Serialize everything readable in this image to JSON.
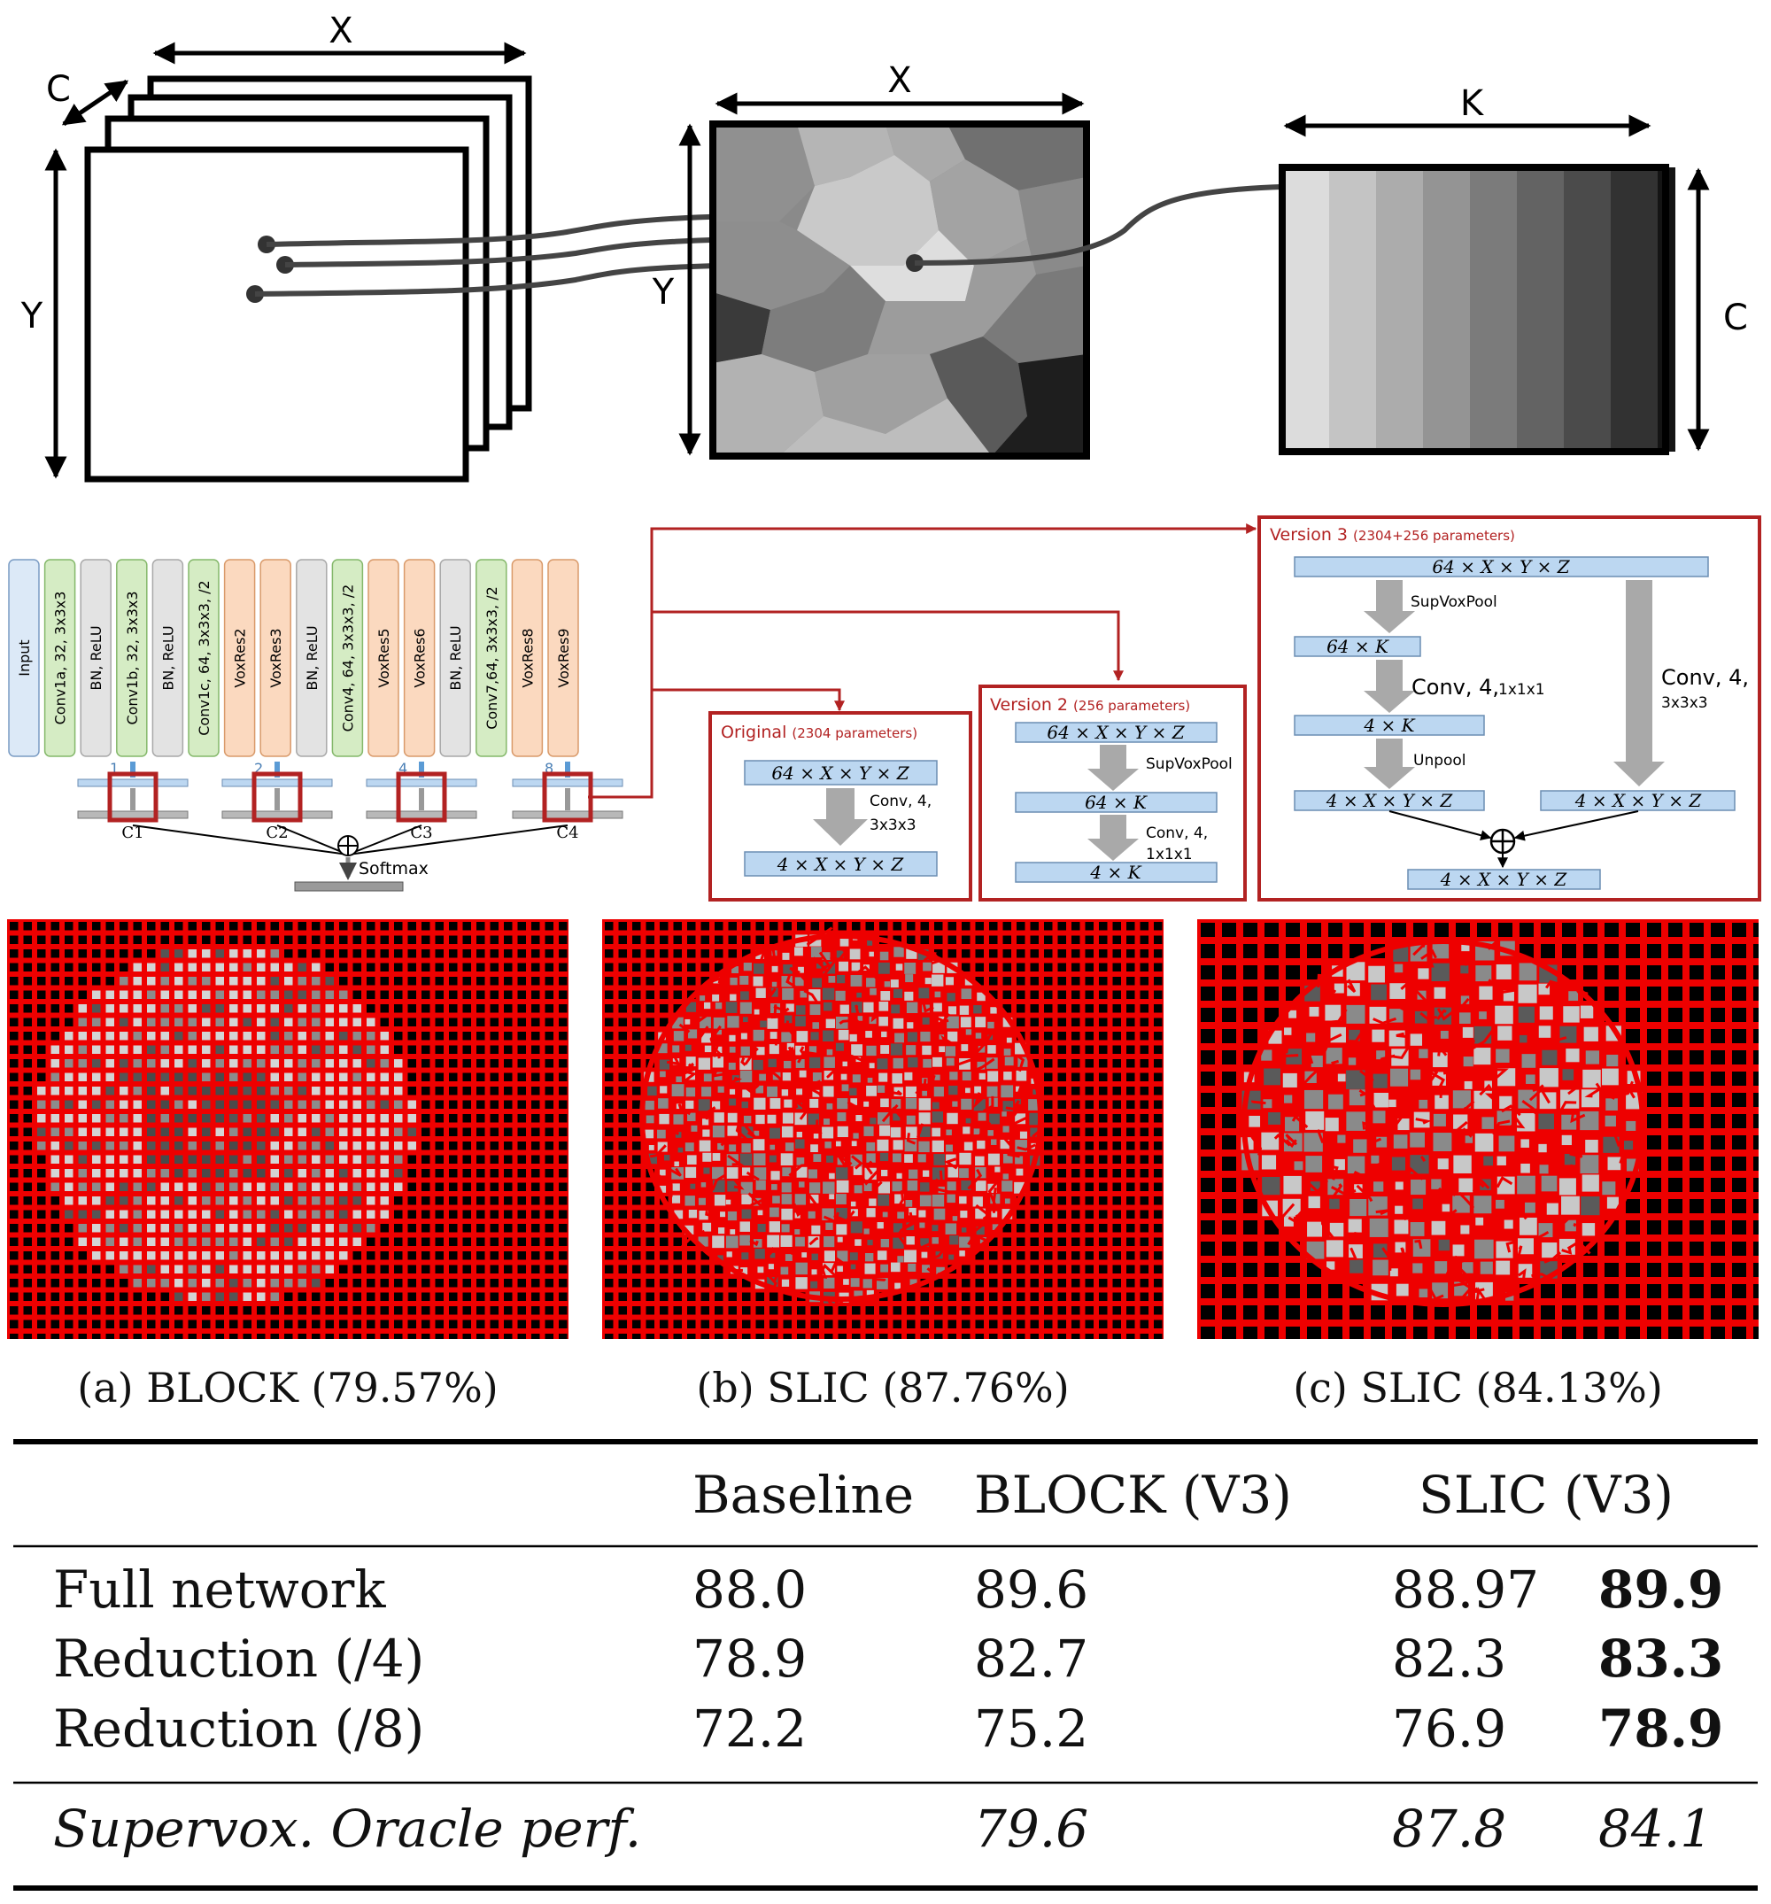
{
  "top_diagram": {
    "feature_maps": {
      "x_label": "X",
      "y_label": "Y",
      "c_label": "C"
    },
    "supervoxel_map": {
      "x_label": "X",
      "y_label": "Y"
    },
    "pooled_features": {
      "k_label": "K",
      "c_label": "C"
    }
  },
  "network": {
    "layers": [
      {
        "label": "Input",
        "type": "input"
      },
      {
        "label": "Conv1a, 32, 3x3x3",
        "type": "conv"
      },
      {
        "label": "BN, ReLU",
        "type": "bn"
      },
      {
        "label": "Conv1b, 32, 3x3x3",
        "type": "conv"
      },
      {
        "label": "BN, ReLU",
        "type": "bn"
      },
      {
        "label": "Conv1c, 64, 3x3x3, /2",
        "type": "conv"
      },
      {
        "label": "VoxRes2",
        "type": "res"
      },
      {
        "label": "VoxRes3",
        "type": "res"
      },
      {
        "label": "BN, ReLU",
        "type": "bn"
      },
      {
        "label": "Conv4, 64, 3x3x3, /2",
        "type": "conv"
      },
      {
        "label": "VoxRes5",
        "type": "res"
      },
      {
        "label": "VoxRes6",
        "type": "res"
      },
      {
        "label": "BN, ReLU",
        "type": "bn"
      },
      {
        "label": "Conv7,64, 3x3x3, /2",
        "type": "conv"
      },
      {
        "label": "VoxRes8",
        "type": "res"
      },
      {
        "label": "VoxRes9",
        "type": "res"
      }
    ],
    "tap_numbers": [
      "1",
      "2",
      "4",
      "8"
    ],
    "classifiers": [
      "C1",
      "C2",
      "C3",
      "C4"
    ],
    "softmax_label": "Softmax",
    "colors": {
      "input": "#dce9f7",
      "conv": "#d5ecc4",
      "bn": "#e3e3e3",
      "res": "#fbd9bf",
      "highlight": "#b22222"
    }
  },
  "versions": {
    "original": {
      "title": "Original",
      "params": "(2304 parameters)",
      "top": "64 × X × Y × Z",
      "op": "Conv, 4,",
      "op2": "3x3x3",
      "bottom": "4 × X × Y × Z"
    },
    "v2": {
      "title": "Version 2",
      "params": "(256 parameters)",
      "top": "64 × X × Y × Z",
      "pool": "SupVoxPool",
      "mid": "64 × K",
      "op": "Conv, 4,",
      "op2": "1x1x1",
      "bottom": "4 × K"
    },
    "v3": {
      "title": "Version 3",
      "params": "(2304+256 parameters)",
      "top": "64 × X × Y × Z",
      "pool": "SupVoxPool",
      "k1": "64 × K",
      "conv": "Conv, 4,",
      "conv_k": "1x1x1",
      "k2": "4 × K",
      "unpool": "Unpool",
      "left_out": "4 × X × Y × Z",
      "side_conv": "Conv, 4,",
      "side_conv_k": "3x3x3",
      "right_out": "4 × X × Y × Z",
      "final": "4 × X × Y × Z"
    }
  },
  "segmentations": [
    {
      "caption": "(a) BLOCK (79.57%)"
    },
    {
      "caption": "(b) SLIC (87.76%)"
    },
    {
      "caption": "(c) SLIC (84.13%)"
    }
  ],
  "results_table": {
    "columns": [
      "Baseline",
      "BLOCK (V3)",
      "SLIC (V3)"
    ],
    "rows": [
      {
        "label": "Full network",
        "baseline": "88.0",
        "block": "89.6",
        "slic_a": "88.97",
        "slic_b": "89.9"
      },
      {
        "label": "Reduction (/4)",
        "baseline": "78.9",
        "block": "82.7",
        "slic_a": "82.3",
        "slic_b": "83.3"
      },
      {
        "label": "Reduction (/8)",
        "baseline": "72.2",
        "block": "75.2",
        "slic_a": "76.9",
        "slic_b": "78.9"
      }
    ],
    "oracle": {
      "label": "Supervox. Oracle perf.",
      "block": "79.6",
      "slic_a": "87.8",
      "slic_b": "84.1"
    }
  }
}
